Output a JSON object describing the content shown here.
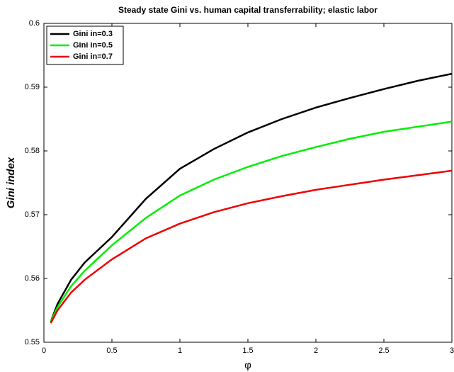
{
  "chart_data": {
    "type": "line",
    "title": "Steady state Gini vs. human capital transferrability; elastic labor",
    "x_label": "φ",
    "y_label": "Gini index",
    "x": [
      0.05,
      0.1,
      0.2,
      0.3,
      0.5,
      0.75,
      1,
      1.25,
      1.5,
      1.75,
      2,
      2.25,
      2.5,
      2.75,
      3
    ],
    "series": [
      {
        "name": "Gini in=0.3",
        "color": "#000000",
        "values": [
          0.5532,
          0.556,
          0.5598,
          0.5625,
          0.5665,
          0.5725,
          0.5772,
          0.5803,
          0.5829,
          0.585,
          0.5868,
          0.5883,
          0.5897,
          0.591,
          0.5921
        ]
      },
      {
        "name": "Gini in=0.5",
        "color": "#00ee00",
        "values": [
          0.5532,
          0.5555,
          0.5588,
          0.5612,
          0.5652,
          0.5695,
          0.573,
          0.5755,
          0.5775,
          0.5792,
          0.5806,
          0.5819,
          0.583,
          0.5838,
          0.5846
        ]
      },
      {
        "name": "Gini in=0.7",
        "color": "#ee0000",
        "values": [
          0.553,
          0.555,
          0.5578,
          0.5598,
          0.563,
          0.5663,
          0.5686,
          0.5704,
          0.5718,
          0.5729,
          0.5739,
          0.5747,
          0.5755,
          0.5762,
          0.5769
        ]
      }
    ],
    "xlim": [
      0,
      3
    ],
    "xticks": [
      0,
      0.5,
      1,
      1.5,
      2,
      2.5,
      3
    ],
    "ylim": [
      0.55,
      0.6
    ],
    "yticks": [
      0.55,
      0.56,
      0.57,
      0.58,
      0.59,
      0.6
    ],
    "legend": "upper-left"
  }
}
